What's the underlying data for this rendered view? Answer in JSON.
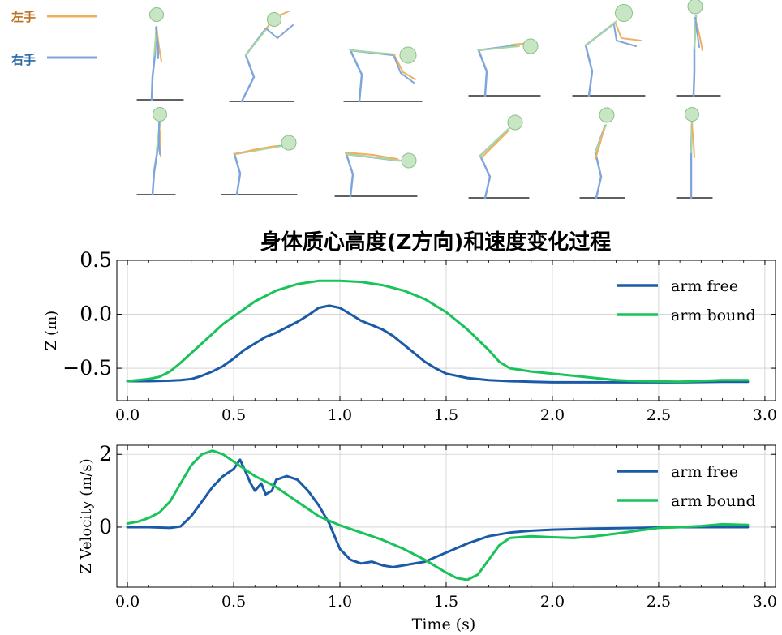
{
  "top_legend": {
    "left_hand": {
      "label": "左手",
      "color": "#f0b060"
    },
    "right_hand": {
      "label": "右手",
      "color": "#7fa6dc"
    }
  },
  "colors": {
    "arm_free": "#1a5aa6",
    "arm_bound": "#19c35a",
    "body_line": "#a8d8a0",
    "head_fill": "#c8e6c4",
    "leg": "#7fa6dc"
  },
  "chart_title": "身体质心高度(Z方向)和速度变化过程",
  "chart_data": [
    {
      "type": "line",
      "xlabel": "",
      "ylabel": "Z (m)",
      "xlim": [
        -0.05,
        3.05
      ],
      "ylim": [
        -0.8,
        0.5
      ],
      "xticks": [
        "0.0",
        "0.5",
        "1.0",
        "1.5",
        "2.0",
        "2.5",
        "3.0"
      ],
      "yticks": [
        "−0.5",
        "0.0",
        "0.5"
      ],
      "grid": true,
      "legend_position": "top-right",
      "series": [
        {
          "name": "arm free",
          "x": [
            0.0,
            0.1,
            0.2,
            0.25,
            0.3,
            0.35,
            0.4,
            0.45,
            0.5,
            0.55,
            0.6,
            0.65,
            0.7,
            0.75,
            0.8,
            0.85,
            0.9,
            0.95,
            1.0,
            1.05,
            1.1,
            1.15,
            1.2,
            1.25,
            1.3,
            1.35,
            1.4,
            1.45,
            1.5,
            1.6,
            1.7,
            1.8,
            1.9,
            2.0,
            2.2,
            2.4,
            2.6,
            2.8,
            2.92
          ],
          "y": [
            -0.62,
            -0.62,
            -0.615,
            -0.61,
            -0.6,
            -0.57,
            -0.53,
            -0.48,
            -0.41,
            -0.33,
            -0.27,
            -0.21,
            -0.17,
            -0.12,
            -0.07,
            -0.01,
            0.06,
            0.08,
            0.06,
            0.0,
            -0.06,
            -0.1,
            -0.14,
            -0.2,
            -0.28,
            -0.36,
            -0.44,
            -0.5,
            -0.55,
            -0.59,
            -0.61,
            -0.62,
            -0.625,
            -0.63,
            -0.63,
            -0.63,
            -0.63,
            -0.625,
            -0.625
          ]
        },
        {
          "name": "arm bound",
          "x": [
            0.0,
            0.1,
            0.15,
            0.2,
            0.25,
            0.3,
            0.35,
            0.4,
            0.45,
            0.5,
            0.55,
            0.6,
            0.7,
            0.8,
            0.9,
            1.0,
            1.1,
            1.2,
            1.3,
            1.4,
            1.5,
            1.6,
            1.7,
            1.75,
            1.8,
            1.9,
            2.0,
            2.1,
            2.2,
            2.3,
            2.4,
            2.6,
            2.8,
            2.92
          ],
          "y": [
            -0.62,
            -0.6,
            -0.58,
            -0.53,
            -0.45,
            -0.36,
            -0.27,
            -0.18,
            -0.09,
            -0.02,
            0.05,
            0.12,
            0.22,
            0.28,
            0.31,
            0.31,
            0.3,
            0.27,
            0.22,
            0.14,
            0.02,
            -0.14,
            -0.33,
            -0.44,
            -0.5,
            -0.53,
            -0.55,
            -0.57,
            -0.59,
            -0.61,
            -0.62,
            -0.625,
            -0.61,
            -0.61
          ]
        }
      ]
    },
    {
      "type": "line",
      "xlabel": "Time (s)",
      "ylabel": "Z Velocity (m/s)",
      "xlim": [
        -0.05,
        3.05
      ],
      "ylim": [
        -1.65,
        2.25
      ],
      "xticks": [
        "0.0",
        "0.5",
        "1.0",
        "1.5",
        "2.0",
        "2.5",
        "3.0"
      ],
      "yticks": [
        "0",
        "2"
      ],
      "grid": true,
      "legend_position": "top-right",
      "series": [
        {
          "name": "arm free",
          "x": [
            0.0,
            0.1,
            0.2,
            0.25,
            0.3,
            0.35,
            0.4,
            0.45,
            0.5,
            0.53,
            0.55,
            0.58,
            0.6,
            0.63,
            0.65,
            0.68,
            0.7,
            0.75,
            0.8,
            0.85,
            0.9,
            0.95,
            1.0,
            1.05,
            1.1,
            1.15,
            1.2,
            1.25,
            1.3,
            1.4,
            1.5,
            1.6,
            1.7,
            1.8,
            1.9,
            2.0,
            2.2,
            2.4,
            2.6,
            2.8,
            2.92
          ],
          "y": [
            0.0,
            0.0,
            -0.02,
            0.02,
            0.3,
            0.7,
            1.1,
            1.4,
            1.6,
            1.85,
            1.6,
            1.2,
            1.0,
            1.2,
            0.9,
            1.0,
            1.3,
            1.4,
            1.3,
            1.0,
            0.6,
            0.1,
            -0.6,
            -0.9,
            -1.0,
            -0.95,
            -1.05,
            -1.1,
            -1.05,
            -0.95,
            -0.7,
            -0.45,
            -0.25,
            -0.15,
            -0.1,
            -0.07,
            -0.04,
            -0.02,
            0.0,
            0.0,
            0.0
          ]
        },
        {
          "name": "arm bound",
          "x": [
            0.0,
            0.05,
            0.1,
            0.15,
            0.2,
            0.25,
            0.3,
            0.35,
            0.4,
            0.45,
            0.5,
            0.55,
            0.6,
            0.7,
            0.8,
            0.9,
            1.0,
            1.1,
            1.2,
            1.3,
            1.4,
            1.5,
            1.55,
            1.6,
            1.65,
            1.7,
            1.75,
            1.8,
            1.9,
            2.0,
            2.1,
            2.2,
            2.3,
            2.4,
            2.5,
            2.6,
            2.7,
            2.8,
            2.92
          ],
          "y": [
            0.1,
            0.15,
            0.25,
            0.4,
            0.7,
            1.2,
            1.7,
            2.0,
            2.1,
            2.0,
            1.8,
            1.6,
            1.4,
            1.1,
            0.7,
            0.3,
            0.05,
            -0.15,
            -0.35,
            -0.6,
            -0.9,
            -1.25,
            -1.4,
            -1.45,
            -1.3,
            -0.9,
            -0.5,
            -0.3,
            -0.25,
            -0.28,
            -0.3,
            -0.25,
            -0.18,
            -0.1,
            -0.02,
            0.0,
            0.03,
            0.08,
            0.06
          ]
        }
      ]
    }
  ]
}
